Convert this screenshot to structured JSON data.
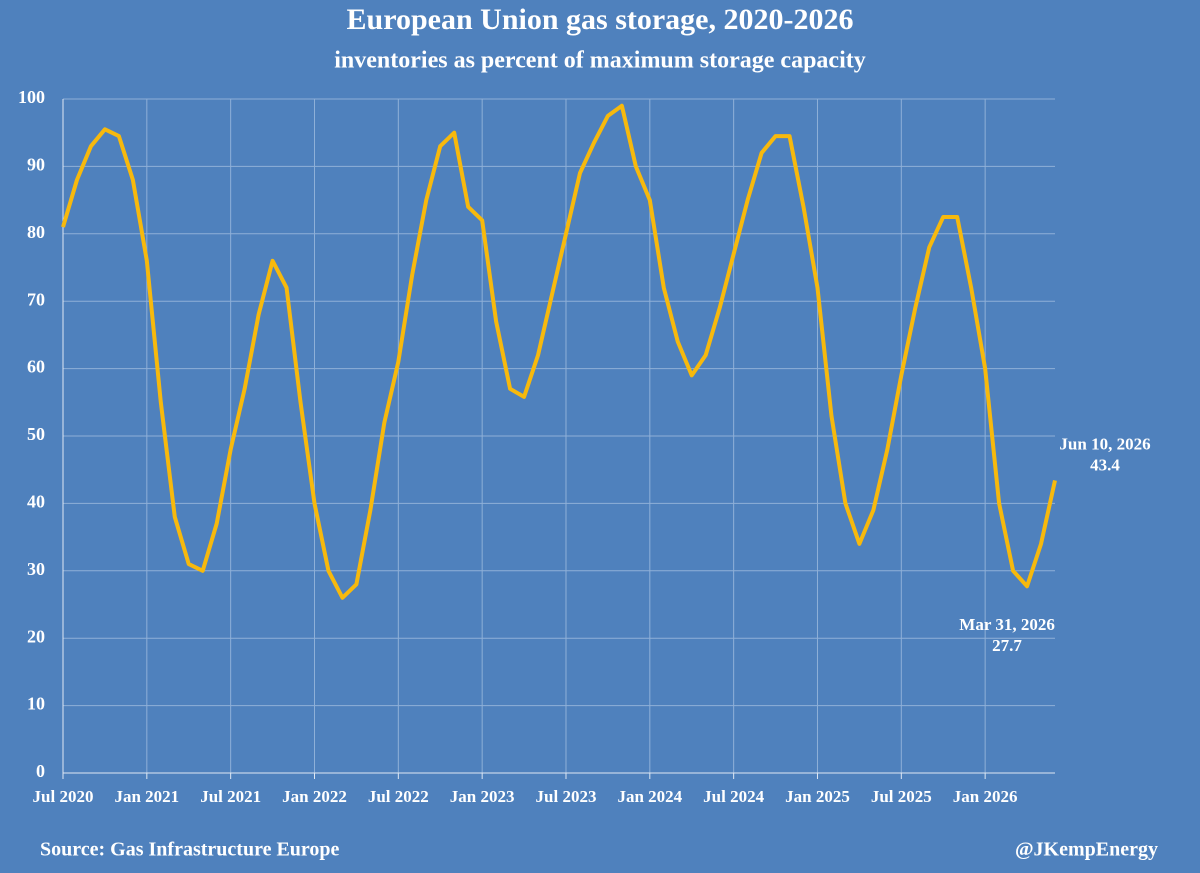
{
  "chart_data": {
    "type": "line",
    "title": "European Union gas storage, 2020-2026",
    "subtitle": "inventories as percent of maximum storage capacity",
    "source": "Source: Gas Infrastructure Europe",
    "credit": "@JKempEnergy",
    "categories": [
      "Jul 2020",
      null,
      null,
      null,
      null,
      null,
      "Jan 2021",
      null,
      null,
      null,
      null,
      null,
      "Jul 2021",
      null,
      null,
      null,
      null,
      null,
      "Jan 2022",
      null,
      null,
      null,
      null,
      null,
      "Jul 2022",
      null,
      null,
      null,
      null,
      null,
      "Jan 2023",
      null,
      null,
      null,
      null,
      null,
      "Jul 2023",
      null,
      null,
      null,
      null,
      null,
      "Jan 2024",
      null,
      null,
      null,
      null,
      null,
      "Jul 2024",
      null,
      null,
      null,
      null,
      null,
      "Jan 2025",
      null,
      null,
      null,
      null,
      null,
      "Jul 2025",
      null,
      null,
      null,
      null,
      null,
      "Jan 2026",
      null,
      null,
      null,
      null,
      null
    ],
    "series": [
      {
        "name": "EU gas storage",
        "color": "#f7b90d",
        "values": [
          81,
          88,
          93,
          95.5,
          94.5,
          88,
          76,
          55,
          38,
          31,
          30,
          37,
          48,
          57,
          68,
          76,
          72,
          55,
          40,
          30,
          26,
          28,
          39,
          52,
          61,
          74,
          85,
          93,
          95,
          84,
          82,
          67,
          57,
          55.8,
          62,
          71,
          80,
          89,
          93.5,
          97.5,
          99,
          90,
          85,
          72,
          64,
          59,
          62,
          69,
          77,
          85,
          92,
          94.5,
          94.5,
          84,
          72,
          53,
          40,
          34,
          39,
          48,
          59,
          69,
          78,
          82.5,
          82.5,
          72,
          60,
          40,
          30,
          27.7,
          34,
          43.4
        ]
      }
    ],
    "annotations": [
      {
        "date": "Mar 31, 2026",
        "value": 27.7
      },
      {
        "date": "Jun 10, 2026",
        "value": 43.4
      }
    ],
    "ylim": [
      0,
      100
    ],
    "yticks": [
      0,
      10,
      20,
      30,
      40,
      50,
      60,
      70,
      80,
      90,
      100
    ],
    "grid": true
  }
}
